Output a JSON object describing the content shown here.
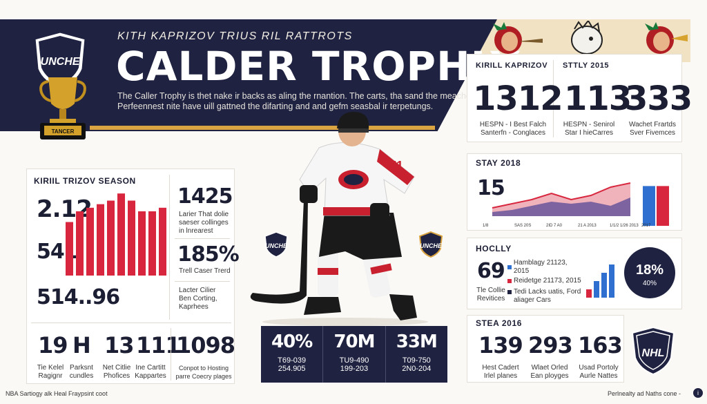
{
  "header": {
    "subtitle": "KITH KAPRIZOV TRIUS RIL RATTROTS",
    "title": "CALDER TROPHLY",
    "intro_line1": "The Caller Trophy is thet nake ir backs as aling the rnantion. The carts, tha sand the meachey",
    "intro_line2": "Perfeennest nite have uill gattned the difarting and and gefm seasbal ir terpetungs.",
    "logo_text": "UNCHE",
    "trophy_plate": "TANCER"
  },
  "top_right": {
    "col1_heading": "KIRILL KAPRIZOV",
    "col2_heading": "STTLY 2015",
    "stats": [
      {
        "value": "1312",
        "caption1": "HESPN - I Best Falch",
        "caption2": "Santerfn - Conglaces"
      },
      {
        "value": "113",
        "caption1": "HESPN - Senirol",
        "caption2": "Star I hieCarres"
      },
      {
        "value": "333",
        "caption1": "Wachet Frartds",
        "caption2": "Sver Fivemces"
      }
    ]
  },
  "left_panel": {
    "heading": "KIRIIL TRIZOV SEASON",
    "stat_a": "2.12",
    "stat_b": "54L",
    "stat_c": "514..96",
    "right_stat1": "1425",
    "right_stat1_cap": [
      "Larier That dolie",
      "saeser collinges",
      "in lnrearest"
    ],
    "right_stat2": "185%",
    "right_stat2_cap": "Trell Caser Trerd",
    "right_stat3_cap": [
      "Lacter Cilier",
      "Ben Corting,",
      "Kaprhees"
    ],
    "bar_values": [
      7.5,
      9,
      9.5,
      10,
      10.5,
      11.5,
      10.5,
      9,
      9,
      9.5
    ],
    "bottom_stats": [
      {
        "value": "19",
        "cap1": "Tie Kelel",
        "cap2": "Ragignr"
      },
      {
        "value": "H",
        "cap1": "Parksnt",
        "cap2": "cundles"
      },
      {
        "value": "13",
        "cap1": "Net Citlie",
        "cap2": "Phofices"
      },
      {
        "value": "111",
        "cap1": "Ine Cartitt",
        "cap2": "Kappartes"
      },
      {
        "value": "1098",
        "cap1": "Conpot to Hosting",
        "cap2": "parre Coecry plages"
      }
    ]
  },
  "center": {
    "stats": [
      {
        "value": "40%",
        "line1": "T69-039",
        "line2": "254.905"
      },
      {
        "value": "70M",
        "line1": "TU9-490",
        "line2": "199-203"
      },
      {
        "value": "33M",
        "line1": "T09-750",
        "line2": "2N0-204"
      }
    ],
    "logo_text": "NHL"
  },
  "trend": {
    "heading": "STAY 2018",
    "big": "15",
    "xlabels": [
      "1/8",
      "SAS 20S",
      "2ID 7 A0",
      "21 A 2013",
      "1/1/2 1/26 2013",
      "2017"
    ],
    "line_values": [
      2,
      3,
      4,
      5.5,
      4,
      5,
      7,
      8
    ],
    "area_values": [
      1,
      1.5,
      2.5,
      3.5,
      3,
      3.5,
      2.5,
      4.5
    ],
    "bars": [
      {
        "value": 7.2,
        "color": "#2e6fcf"
      },
      {
        "value": 7.2,
        "color": "#d7263d"
      }
    ],
    "colors": {
      "blue": "#2e6fcf",
      "red": "#d7263d",
      "navy": "#1f2240"
    }
  },
  "hockey": {
    "heading": "HOCLLY",
    "big": "69",
    "cap1": "Tle Collie",
    "cap2": "Revitices",
    "legend": [
      {
        "label": "Hamblagy 21123, 2015",
        "color": "#2e6fcf"
      },
      {
        "label": "Reidetge 21173, 2015",
        "color": "#d7263d"
      },
      {
        "label": "Tedi Lacks uatis, Ford",
        "color": "#1f2240"
      },
      {
        "label": "aliager Cars",
        "color": ""
      }
    ],
    "mini_bars": [
      1,
      2,
      3,
      4
    ],
    "ring_value": "18%",
    "ring_sub": "40%"
  },
  "season": {
    "heading": "STEA 2016",
    "stats": [
      {
        "value": "139",
        "cap1": "Hest Cadert",
        "cap2": "Irlel planes"
      },
      {
        "value": "293",
        "cap1": "Wlaet Orled",
        "cap2": "Ean ployges"
      },
      {
        "value": "163",
        "cap1": "Usad Portoly",
        "cap2": "Aurle Nattes"
      }
    ]
  },
  "footer": {
    "left": "NBA Sartiogy alk Heal Fraypsint coot",
    "right": "Perlnealty ad Naths cone -"
  }
}
